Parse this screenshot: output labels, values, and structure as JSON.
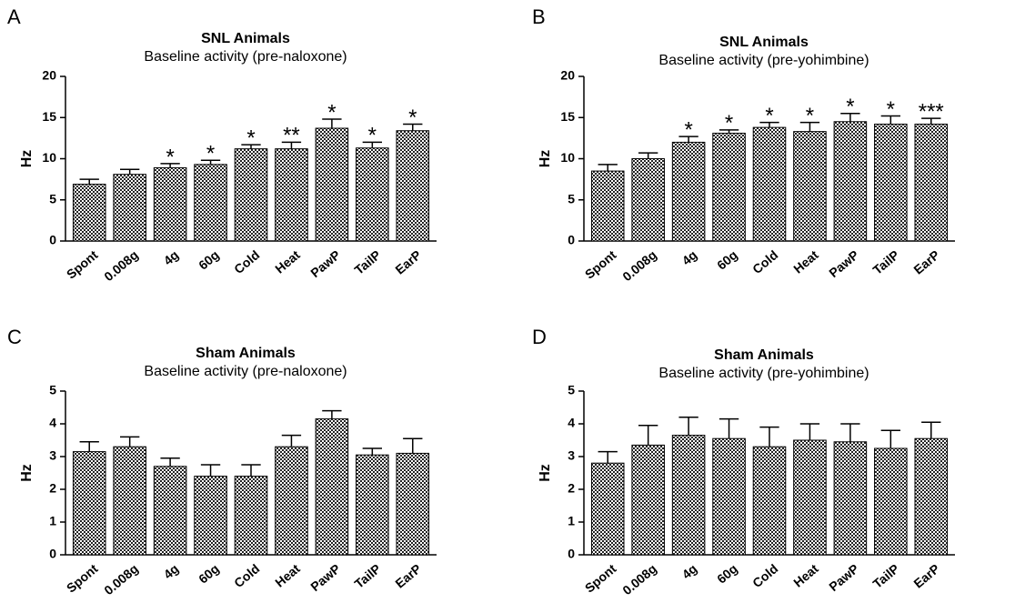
{
  "chart_data": [
    {
      "type": "bar",
      "panel": "A",
      "title": "SNL Animals",
      "subtitle": "Baseline activity (pre-naloxone)",
      "ylabel": "Hz",
      "categories": [
        "Spont",
        "0.008g",
        "4g",
        "60g",
        "Cold",
        "Heat",
        "PawP",
        "TailP",
        "EarP"
      ],
      "values": [
        6.9,
        8.1,
        8.9,
        9.3,
        11.2,
        11.2,
        13.7,
        11.3,
        13.4
      ],
      "errors": [
        0.6,
        0.6,
        0.5,
        0.5,
        0.5,
        0.8,
        1.1,
        0.7,
        0.8
      ],
      "annotations": [
        null,
        null,
        "*",
        "*",
        "*",
        "**",
        "*",
        "*",
        "*"
      ],
      "ylim": [
        0,
        20
      ],
      "yticks": [
        0,
        5,
        10,
        15,
        20
      ]
    },
    {
      "type": "bar",
      "panel": "B",
      "title": "SNL Animals",
      "subtitle": "Baseline activity (pre-yohimbine)",
      "ylabel": "Hz",
      "categories": [
        "Spont",
        "0.008g",
        "4g",
        "60g",
        "Cold",
        "Heat",
        "PawP",
        "TailP",
        "EarP"
      ],
      "values": [
        8.5,
        10.0,
        12.0,
        13.1,
        13.8,
        13.3,
        14.5,
        14.2,
        14.2
      ],
      "errors": [
        0.8,
        0.7,
        0.7,
        0.4,
        0.6,
        1.1,
        1.0,
        1.0,
        0.7
      ],
      "annotations": [
        null,
        null,
        "*",
        "*",
        "*",
        "*",
        "*",
        "*",
        "***"
      ],
      "ylim": [
        0,
        20
      ],
      "yticks": [
        0,
        5,
        10,
        15,
        20
      ]
    },
    {
      "type": "bar",
      "panel": "C",
      "title": "Sham Animals",
      "subtitle": "Baseline activity (pre-naloxone)",
      "ylabel": "Hz",
      "categories": [
        "Spont",
        "0.008g",
        "4g",
        "60g",
        "Cold",
        "Heat",
        "PawP",
        "TailP",
        "EarP"
      ],
      "values": [
        3.15,
        3.3,
        2.7,
        2.4,
        2.4,
        3.3,
        4.15,
        3.05,
        3.1
      ],
      "errors": [
        0.3,
        0.3,
        0.25,
        0.35,
        0.35,
        0.35,
        0.25,
        0.2,
        0.45
      ],
      "ylim": [
        0,
        5
      ],
      "yticks": [
        0,
        1,
        2,
        3,
        4,
        5
      ]
    },
    {
      "type": "bar",
      "panel": "D",
      "title": "Sham Animals",
      "subtitle": "Baseline activity (pre-yohimbine)",
      "ylabel": "Hz",
      "categories": [
        "Spont",
        "0.008g",
        "4g",
        "60g",
        "Cold",
        "Heat",
        "PawP",
        "TailP",
        "EarP"
      ],
      "values": [
        2.8,
        3.35,
        3.65,
        3.55,
        3.3,
        3.5,
        3.45,
        3.25,
        3.55
      ],
      "errors": [
        0.35,
        0.6,
        0.55,
        0.6,
        0.6,
        0.5,
        0.55,
        0.55,
        0.5
      ],
      "ylim": [
        0,
        5
      ],
      "yticks": [
        0,
        1,
        2,
        3,
        4,
        5
      ]
    }
  ]
}
